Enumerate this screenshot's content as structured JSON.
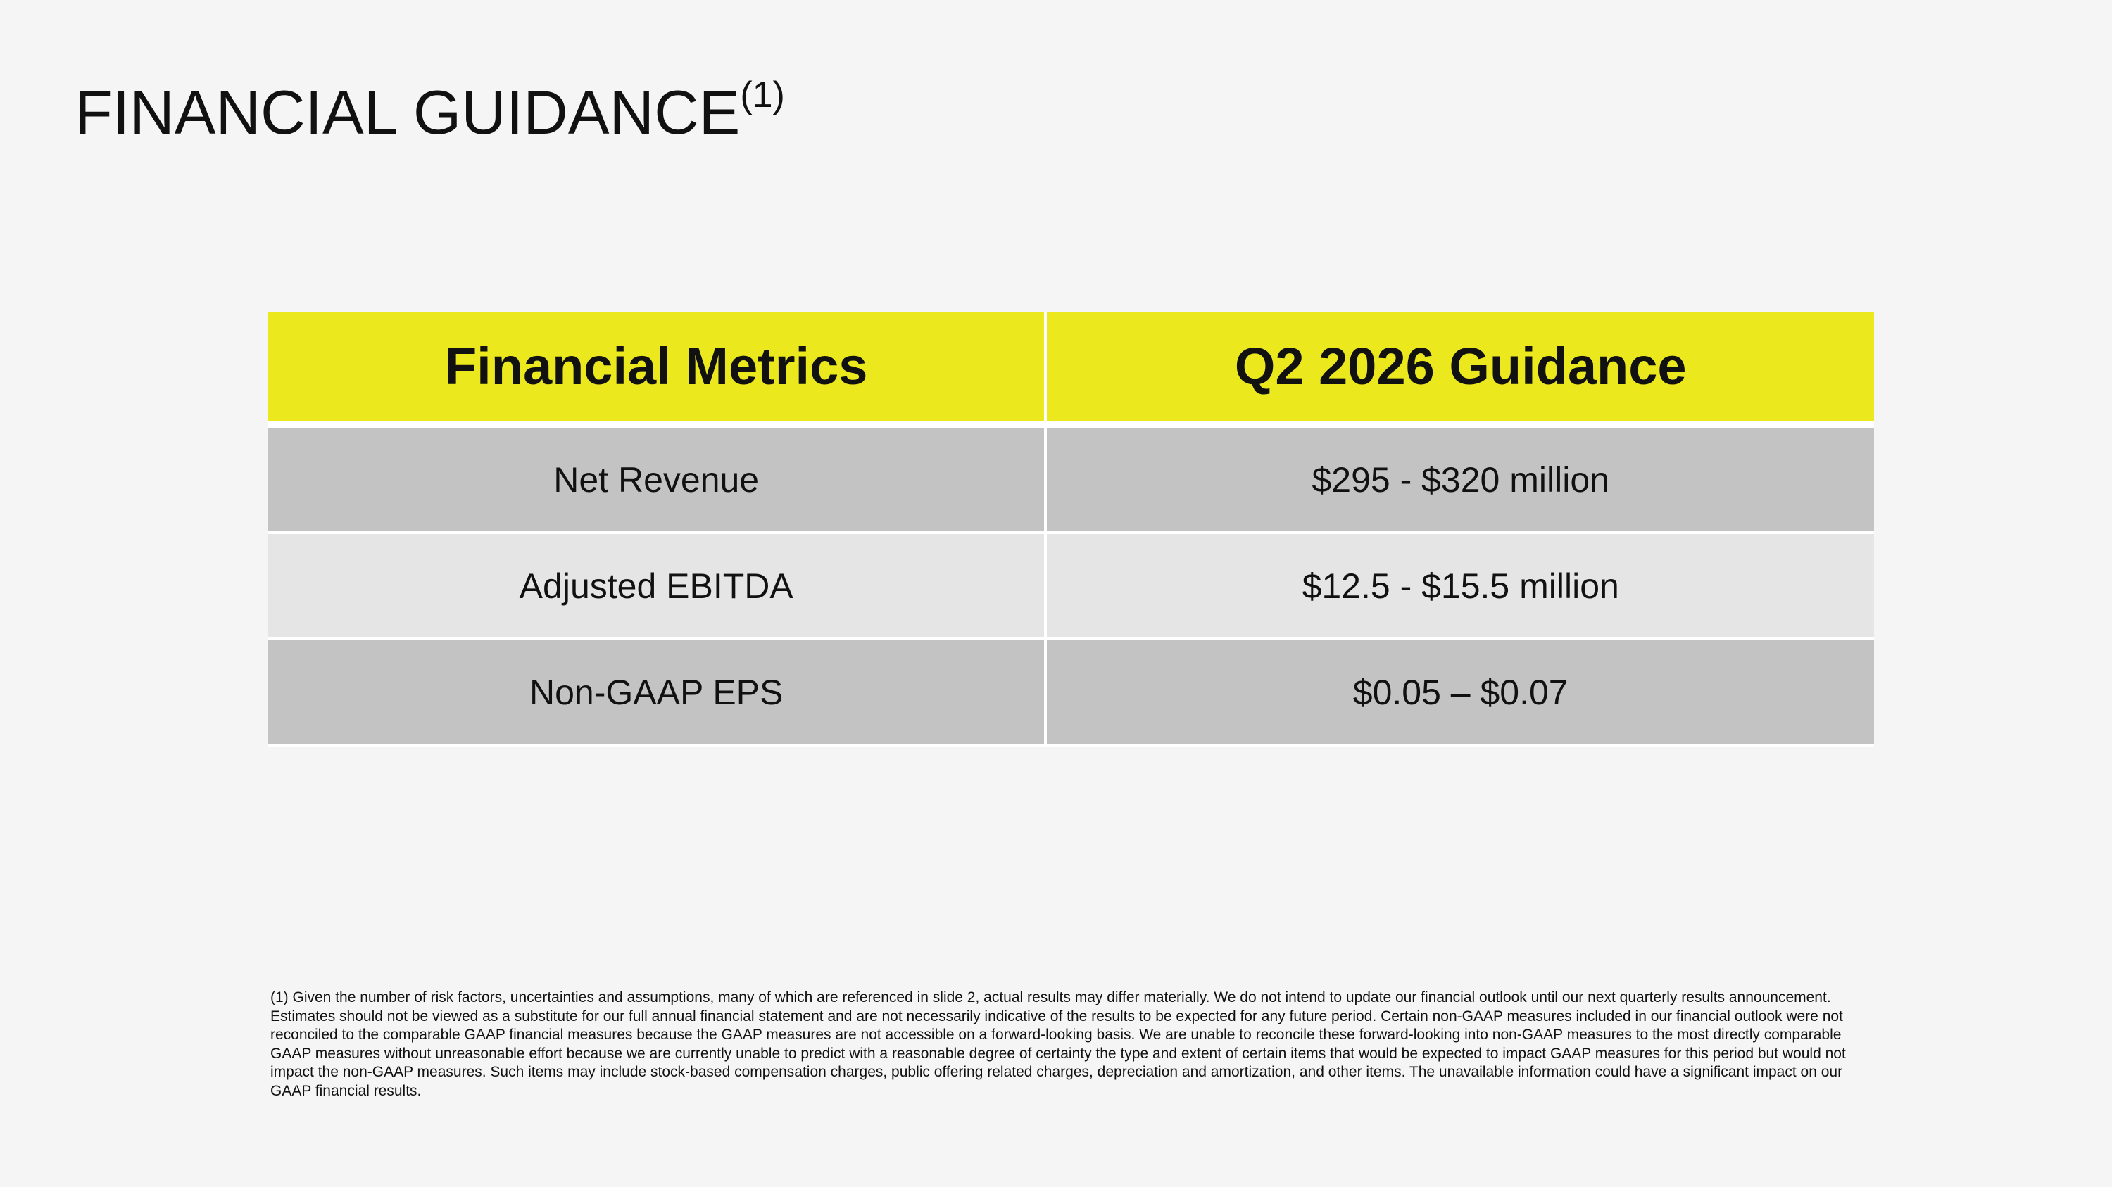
{
  "header": {
    "title": "FINANCIAL GUIDANCE",
    "note_marker": "(1)"
  },
  "table": {
    "columns": [
      "Financial Metrics",
      "Q2 2026 Guidance"
    ],
    "rows": [
      [
        "Net Revenue",
        "$295 - $320 million"
      ],
      [
        "Adjusted EBITDA",
        "$12.5 - $15.5 million"
      ],
      [
        "Non-GAAP EPS",
        "$0.05 – $0.07"
      ]
    ]
  },
  "footnote": "(1) Given the number of risk factors, uncertainties and assumptions, many of which are referenced in slide 2, actual results may differ materially. We do not intend to update our financial outlook until our next quarterly results announcement. Estimates should not be viewed as a substitute for our full annual financial statement and are not necessarily indicative of the results to be expected for any future period. Certain non-GAAP measures included in our financial outlook were not reconciled to the comparable GAAP financial measures because the GAAP measures are not accessible on a forward-looking basis. We are unable to reconcile these forward-looking into non-GAAP measures to the most directly comparable GAAP measures without unreasonable effort because we are currently unable to predict with a reasonable degree of certainty the type and extent of certain items that would be expected to impact GAAP measures for this period but would not impact the non-GAAP measures. Such items may include stock-based compensation charges, public offering related charges, depreciation and amortization, and other items. The unavailable information could have a significant impact on our GAAP financial results."
}
